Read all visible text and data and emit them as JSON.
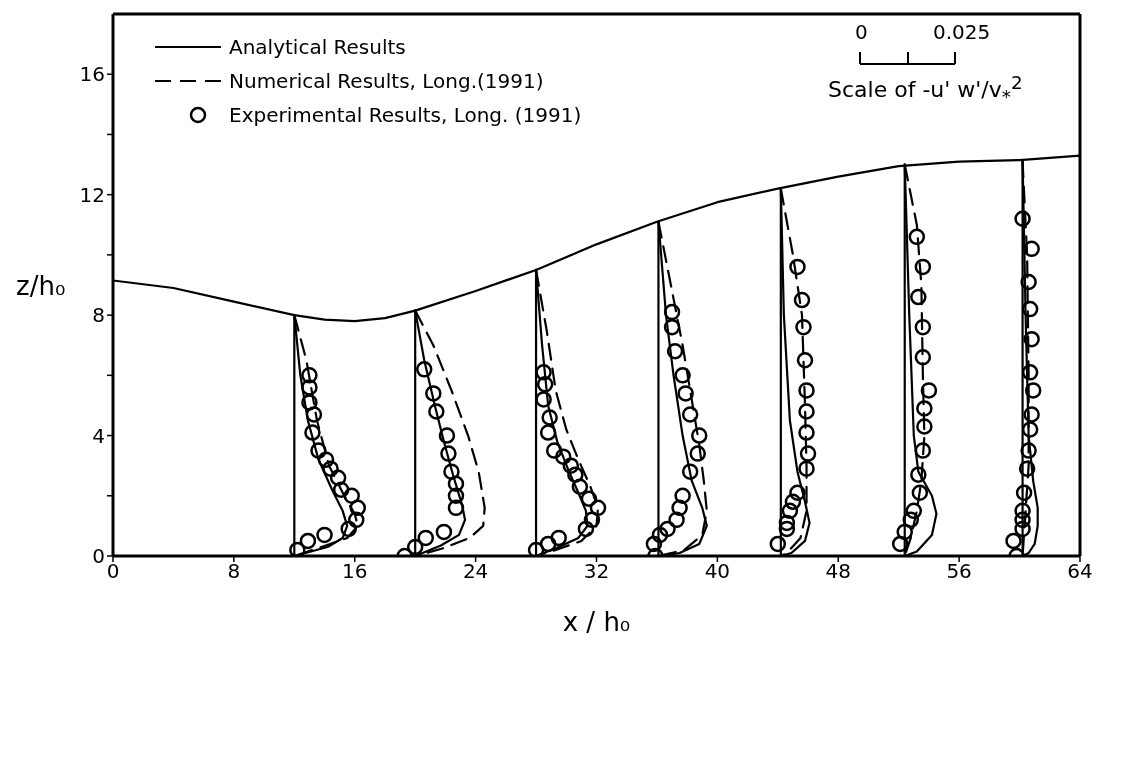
{
  "chart_data": {
    "type": "line",
    "xlabel": "x / h₀",
    "ylabel": "z/h₀",
    "xlim": [
      0,
      64
    ],
    "xticks": [
      0,
      8,
      16,
      24,
      32,
      40,
      48,
      56,
      64
    ],
    "ylim": [
      0,
      18
    ],
    "yticks": [
      0,
      {
        "value": 2,
        "label": null
      },
      4,
      {
        "value": 6,
        "label": null
      },
      8,
      {
        "value": 10,
        "label": null
      },
      12,
      {
        "value": 14,
        "label": null
      },
      16
    ],
    "legend": "top left",
    "annotations": [
      "0",
      "0.025",
      "Scale of -u' w'/v$_{*}$$^{2}$"
    ],
    "series": [
      {
        "color": "#000000",
        "line_style": "solid",
        "marker": "none",
        "x": [
          0,
          4,
          8,
          12,
          14,
          16,
          18,
          20,
          24,
          28,
          32,
          36,
          40,
          44,
          48,
          52,
          56,
          60,
          64
        ],
        "values": [
          9.15,
          8.9,
          8.45,
          8.0,
          7.85,
          7.8,
          7.9,
          8.15,
          8.8,
          9.5,
          10.35,
          11.1,
          11.75,
          12.2,
          12.6,
          12.95,
          13.1,
          13.15,
          13.3
        ]
      },
      {
        "color": "#000000",
        "line_style": "solid",
        "marker": "none",
        "x": [
          12,
          12
        ],
        "values": [
          0,
          8.0
        ]
      },
      {
        "color": "#000000",
        "line_style": "solid",
        "marker": "none",
        "x": [
          20,
          20
        ],
        "values": [
          0,
          8.15
        ]
      },
      {
        "color": "#000000",
        "line_style": "solid",
        "marker": "none",
        "x": [
          28,
          28
        ],
        "values": [
          0,
          9.5
        ]
      },
      {
        "color": "#000000",
        "line_style": "solid",
        "marker": "none",
        "x": [
          36.1,
          36.1
        ],
        "values": [
          0,
          11.1
        ]
      },
      {
        "color": "#000000",
        "line_style": "solid",
        "marker": "none",
        "x": [
          44.2,
          44.2
        ],
        "values": [
          0,
          12.2
        ]
      },
      {
        "color": "#000000",
        "line_style": "solid",
        "marker": "none",
        "x": [
          52.4,
          52.4
        ],
        "values": [
          0,
          13.0
        ]
      },
      {
        "color": "#000000",
        "line_style": "solid",
        "marker": "none",
        "x": [
          60.2,
          60.2
        ],
        "values": [
          0,
          13.1
        ]
      },
      {
        "name": "Analytical Results",
        "color": "#000000",
        "line_style": "solid",
        "marker": "none",
        "x": [
          12,
          12.4,
          12.9,
          13.6,
          14.5,
          15.2,
          15.5,
          15.2,
          14.2,
          12
        ],
        "values": [
          8,
          6,
          4.5,
          3.2,
          2.2,
          1.5,
          1,
          0.6,
          0.3,
          0
        ]
      },
      {
        "color": "#000000",
        "line_style": "solid",
        "marker": "none",
        "x": [
          20,
          20.6,
          21.3,
          21.9,
          22.5,
          23.1,
          23.3,
          22.9,
          21.7,
          20
        ],
        "values": [
          8.15,
          6.5,
          5,
          3.8,
          2.7,
          1.7,
          1.2,
          0.7,
          0.35,
          0
        ]
      },
      {
        "color": "#000000",
        "line_style": "solid",
        "marker": "none",
        "x": [
          28,
          28.4,
          28.8,
          29.4,
          30.1,
          30.8,
          31.3,
          31.4,
          30.8,
          29.5,
          28
        ],
        "values": [
          9.5,
          7,
          5,
          3.8,
          2.9,
          2.1,
          1.5,
          1,
          0.6,
          0.3,
          0
        ]
      },
      {
        "color": "#000000",
        "line_style": "solid",
        "marker": "none",
        "x": [
          36.1,
          36.6,
          37.1,
          37.7,
          38.3,
          39,
          39.3,
          38.8,
          37.5,
          36.1
        ],
        "values": [
          11.1,
          8,
          6,
          4,
          2.5,
          1.6,
          1,
          0.4,
          0.1,
          0
        ]
      },
      {
        "color": "#000000",
        "line_style": "solid",
        "marker": "none",
        "x": [
          44.2,
          44.4,
          44.8,
          45.3,
          45.8,
          46.1,
          45.8,
          44.9,
          44.2
        ],
        "values": [
          12.2,
          8,
          4.5,
          2.8,
          1.8,
          1.1,
          0.5,
          0.1,
          0
        ]
      },
      {
        "color": "#000000",
        "line_style": "solid",
        "marker": "none",
        "x": [
          52.4,
          52.7,
          53,
          53.3,
          54.2,
          54.5,
          54.2,
          53.2,
          52.4
        ],
        "values": [
          13,
          8,
          4,
          2.8,
          2,
          1.4,
          0.7,
          0.15,
          0
        ]
      },
      {
        "color": "#000000",
        "line_style": "solid",
        "marker": "none",
        "x": [
          60.2,
          60.4,
          60.6,
          60.9,
          61.2,
          61.2,
          61,
          60.6,
          60.2
        ],
        "values": [
          13.1,
          8,
          4,
          2.5,
          1.6,
          1,
          0.4,
          0.1,
          0
        ]
      },
      {
        "name": "Numerical Results, Long.(1991)",
        "color": "#000000",
        "line_style": "dashed",
        "marker": "none",
        "x": [
          12,
          12.8,
          13.5,
          14.3,
          15.3,
          16,
          16.2,
          15.5,
          13.8,
          12
        ],
        "values": [
          8,
          6.5,
          4.5,
          3,
          2,
          1.4,
          1,
          0.6,
          0.3,
          0
        ]
      },
      {
        "color": "#000000",
        "line_style": "dashed",
        "marker": "none",
        "x": [
          20,
          21.2,
          22.4,
          23.5,
          24.2,
          24.6,
          24.5,
          23.6,
          21.8,
          20
        ],
        "values": [
          8.15,
          7,
          5.5,
          4,
          2.8,
          1.6,
          1,
          0.6,
          0.25,
          0
        ]
      },
      {
        "color": "#000000",
        "line_style": "dashed",
        "marker": "none",
        "x": [
          28,
          28.7,
          29.3,
          30,
          30.8,
          31.6,
          32.1,
          32,
          31,
          29.3,
          28
        ],
        "values": [
          9.5,
          7.5,
          5.5,
          4.2,
          3.2,
          2.3,
          1.6,
          1,
          0.5,
          0.2,
          0
        ]
      },
      {
        "color": "#000000",
        "line_style": "dashed",
        "marker": "none",
        "x": [
          36.1,
          37,
          37.7,
          38.3,
          38.8,
          39.1,
          39.3,
          39,
          37.8,
          36.1
        ],
        "values": [
          11.1,
          8.8,
          7,
          5.2,
          3.7,
          2.5,
          1.5,
          0.7,
          0.2,
          0
        ]
      },
      {
        "color": "#000000",
        "line_style": "dashed",
        "marker": "none",
        "x": [
          44.2,
          45,
          45.6,
          45.8,
          45.9,
          45.9,
          45.5,
          44.6,
          44.2
        ],
        "values": [
          12.2,
          10,
          8,
          5,
          3,
          1.5,
          0.6,
          0.1,
          0
        ]
      },
      {
        "color": "#000000",
        "line_style": "dashed",
        "marker": "none",
        "x": [
          52.4,
          53.2,
          53.5,
          53.6,
          53.7,
          53.5,
          53.2,
          52.8,
          52.4
        ],
        "values": [
          13,
          11,
          9,
          6,
          4,
          2.5,
          1.5,
          0.6,
          0
        ]
      },
      {
        "color": "#000000",
        "line_style": "dashed",
        "marker": "none",
        "x": [
          60.2,
          60.5,
          60.6,
          60.6,
          60.4,
          60.2
        ],
        "values": [
          13.1,
          10,
          6,
          3,
          1.5,
          0
        ]
      },
      {
        "name": "Experimental Results, Long. (1991)",
        "type": "scatter",
        "color": "#000000",
        "marker": "circle",
        "x": [
          13,
          13,
          13,
          13.3,
          13.2,
          13.6,
          14.1,
          14.4,
          14.9,
          15.1,
          15.8,
          16.2,
          16.1,
          15.6,
          14,
          12.9,
          12.2,
          20.6,
          21.2,
          21.4,
          22.1,
          22.2,
          22.4,
          22.7,
          22.7,
          22.7,
          21.9,
          20.7,
          20,
          19.3,
          28.5,
          28.6,
          28.5,
          28.9,
          28.8,
          29.2,
          29.8,
          30.3,
          30.6,
          30.9,
          31.5,
          32.1,
          31.7,
          31.3,
          29.5,
          28.8,
          28,
          37,
          37,
          37.2,
          37.7,
          37.9,
          38.2,
          38.8,
          38.7,
          38.2,
          37.7,
          37.5,
          37.3,
          36.7,
          36.2,
          35.8,
          35.9,
          45.3,
          45.6,
          45.7,
          45.8,
          45.9,
          45.9,
          45.9,
          46,
          45.9,
          45.3,
          45,
          44.8,
          44.6,
          44.6,
          44,
          53.2,
          53.6,
          53.3,
          53.6,
          53.6,
          54,
          53.7,
          53.7,
          53.6,
          53.3,
          53.4,
          53,
          52.8,
          52.4,
          52.1,
          60.2,
          60.8,
          60.6,
          60.7,
          60.8,
          60.7,
          60.9,
          60.8,
          60.7,
          60.6,
          60.5,
          60.3,
          60.2,
          60.2,
          60.2,
          59.6,
          59.8
        ],
        "values": [
          6,
          5.6,
          5.1,
          4.7,
          4.1,
          3.5,
          3.2,
          2.9,
          2.6,
          2.2,
          2,
          1.6,
          1.2,
          0.9,
          0.7,
          0.5,
          0.2,
          6.2,
          5.4,
          4.8,
          4,
          3.4,
          2.8,
          2.4,
          2,
          1.6,
          0.8,
          0.6,
          0.3,
          0,
          6.1,
          5.7,
          5.2,
          4.6,
          4.1,
          3.5,
          3.3,
          3,
          2.7,
          2.3,
          1.9,
          1.6,
          1.2,
          0.9,
          0.6,
          0.4,
          0.2,
          8.1,
          7.6,
          6.8,
          6,
          5.4,
          4.7,
          4,
          3.4,
          2.8,
          2,
          1.6,
          1.2,
          0.9,
          0.7,
          0.4,
          0,
          9.6,
          8.5,
          7.6,
          6.5,
          5.5,
          4.8,
          4.1,
          3.4,
          2.9,
          2.1,
          1.8,
          1.5,
          1.1,
          0.9,
          0.4,
          10.6,
          9.6,
          8.6,
          7.6,
          6.6,
          5.5,
          4.9,
          4.3,
          3.5,
          2.7,
          2.1,
          1.5,
          1.2,
          0.8,
          0.4,
          11.2,
          10.2,
          9.1,
          8.2,
          7.2,
          6.1,
          5.5,
          4.7,
          4.2,
          3.5,
          2.9,
          2.1,
          1.5,
          1.2,
          0.9,
          0.5,
          0
        ]
      }
    ]
  }
}
